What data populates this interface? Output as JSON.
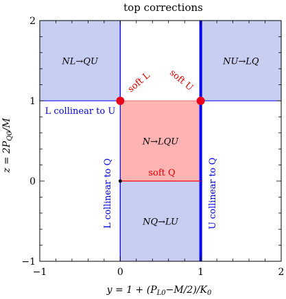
{
  "title": "top corrections",
  "xlabel": "y = 1 + (P",
  "xlabel_sub1": "L0",
  "xlabel_mid": "−M/2)/K",
  "xlabel_sub2": "0",
  "ylabel": "z = 2P",
  "ylabel_sub": "Q0",
  "ylabel_end": "/M",
  "xlim": [
    -1,
    2
  ],
  "ylim": [
    -1,
    2
  ],
  "x_ticks": [
    {
      "value": -1,
      "label": "−1"
    },
    {
      "value": 0,
      "label": "0"
    },
    {
      "value": 1,
      "label": "1"
    },
    {
      "value": 2,
      "label": "2"
    }
  ],
  "y_ticks": [
    {
      "value": -1,
      "label": "−1"
    },
    {
      "value": 0,
      "label": "0"
    },
    {
      "value": 1,
      "label": "1"
    },
    {
      "value": 2,
      "label": "2"
    }
  ],
  "colors": {
    "blue_fill": "#c8cdf2",
    "blue_line": "#0000ff",
    "red_fill": "#ffb3b3",
    "red_line": "#ff0000",
    "red_dot": "#e8001a",
    "axis": "#000000",
    "label_red": "#e00000",
    "label_blue": "#0000dd"
  },
  "regions": [
    {
      "name": "NL→QU",
      "x": [
        -1,
        0
      ],
      "y": [
        1,
        2
      ],
      "fill": "blue"
    },
    {
      "name": "NU→LQ",
      "x": [
        1,
        2
      ],
      "y": [
        1,
        2
      ],
      "fill": "blue"
    },
    {
      "name": "N→LQU",
      "x": [
        0,
        1
      ],
      "y": [
        0,
        1
      ],
      "fill": "red"
    },
    {
      "name": "NQ→LU",
      "x": [
        0,
        1
      ],
      "y": [
        -1,
        0
      ],
      "fill": "blue"
    }
  ],
  "labels": {
    "soft_l": "soft L",
    "soft_u": "soft U",
    "soft_q": "soft Q",
    "l_collinear_u": "L collinear to U",
    "l_collinear_q": "L collinear to Q",
    "u_collinear_q": "U collinear to Q"
  }
}
